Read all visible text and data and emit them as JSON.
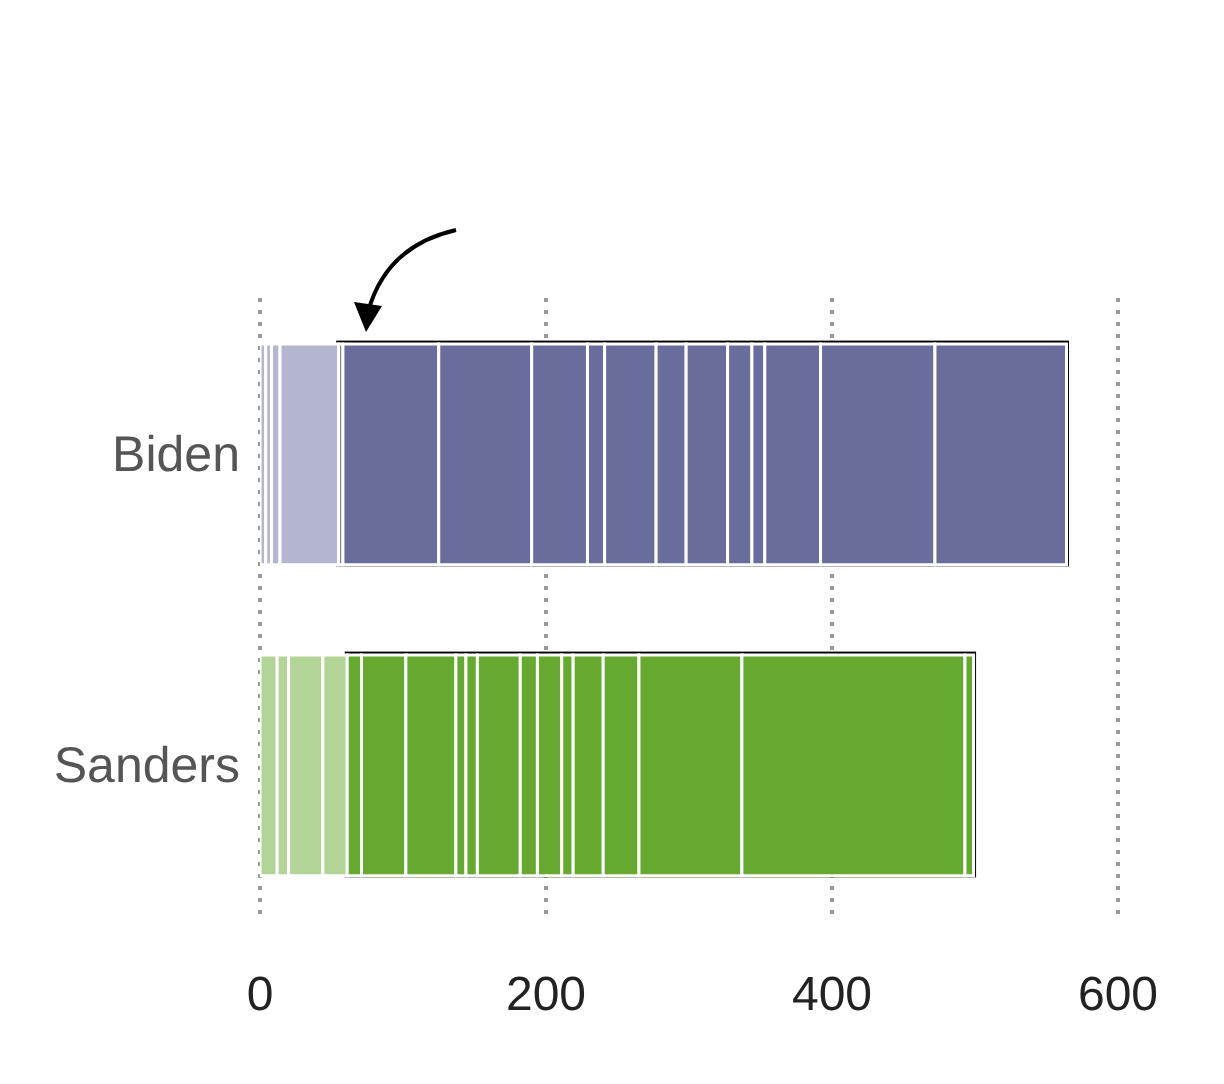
{
  "chart_data": {
    "type": "bar",
    "orientation": "horizontal",
    "stacked": true,
    "categories": [
      "Biden",
      "Sanders"
    ],
    "series": [
      {
        "colors": [
          "#b4b6cf",
          "#b2d496"
        ],
        "values": [
          4,
          12
        ]
      },
      {
        "colors": [
          "#b4b6cf",
          "#b2d496"
        ],
        "values": [
          4,
          8
        ]
      },
      {
        "colors": [
          "#b4b6cf",
          "#b2d496"
        ],
        "values": [
          6,
          24
        ]
      },
      {
        "colors": [
          "#b4b6cf",
          "#b2d496"
        ],
        "values": [
          41,
          17
        ]
      },
      {
        "colors": [
          "#686d9c",
          "#65a92f"
        ],
        "values": [
          3,
          10
        ]
      },
      {
        "colors": [
          "#686d9c",
          "#65a92f"
        ],
        "values": [
          67,
          31
        ]
      },
      {
        "colors": [
          "#686d9c",
          "#65a92f"
        ],
        "values": [
          65,
          35
        ]
      },
      {
        "colors": [
          "#686d9c",
          "#65a92f"
        ],
        "values": [
          39,
          7
        ]
      },
      {
        "colors": [
          "#686d9c",
          "#65a92f"
        ],
        "values": [
          12,
          8
        ]
      },
      {
        "colors": [
          "#686d9c",
          "#65a92f"
        ],
        "values": [
          36,
          30
        ]
      },
      {
        "colors": [
          "#686d9c",
          "#65a92f"
        ],
        "values": [
          21,
          12
        ]
      },
      {
        "colors": [
          "#686d9c",
          "#65a92f"
        ],
        "values": [
          29,
          17
        ]
      },
      {
        "colors": [
          "#686d9c",
          "#65a92f"
        ],
        "values": [
          17,
          8
        ]
      },
      {
        "colors": [
          "#686d9c",
          "#65a92f"
        ],
        "values": [
          9,
          21
        ]
      },
      {
        "colors": [
          "#686d9c",
          "#65a92f"
        ],
        "values": [
          39,
          25
        ]
      },
      {
        "colors": [
          "#686d9c",
          "#65a92f"
        ],
        "values": [
          80,
          72
        ]
      },
      {
        "colors": [
          "#686d9c",
          "#65a92f"
        ],
        "values": [
          92,
          156
        ]
      },
      {
        "colors": [
          null,
          "#65a92f"
        ],
        "values": [
          null,
          6
        ]
      }
    ],
    "xlim": [
      0,
      600
    ],
    "xticks": [
      0,
      200,
      400,
      600
    ],
    "grid": "x"
  }
}
